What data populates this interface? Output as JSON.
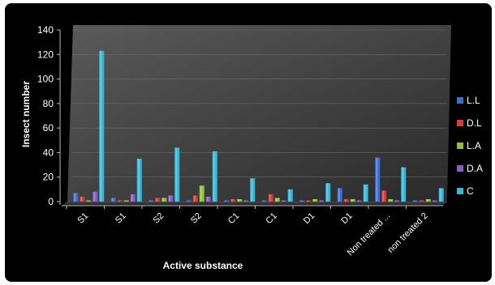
{
  "chart_data": {
    "type": "bar",
    "xlabel": "Active substance",
    "ylabel": "Insect number",
    "ylim": [
      0,
      140
    ],
    "yticks": [
      0,
      20,
      40,
      60,
      80,
      100,
      120,
      140
    ],
    "categories": [
      "S1",
      "S1",
      "S2",
      "S2",
      "C1",
      "C1",
      "D1",
      "D1",
      "Non treated ...",
      "non treated 2"
    ],
    "legend_position": "right",
    "grid": true,
    "series": [
      {
        "name": "L.L",
        "color": "#3a6fd8",
        "values": [
          7,
          3,
          1,
          1,
          1,
          1,
          1,
          11,
          36,
          1
        ]
      },
      {
        "name": "D.L",
        "color": "#d83a3a",
        "values": [
          4,
          1,
          3,
          5,
          2,
          6,
          1,
          2,
          9,
          1
        ]
      },
      {
        "name": "L.A",
        "color": "#8fc23a",
        "values": [
          1,
          1,
          3,
          13,
          2,
          3,
          2,
          2,
          2,
          2
        ]
      },
      {
        "name": "D.A",
        "color": "#8a5ac8",
        "values": [
          8,
          6,
          5,
          4,
          1,
          1,
          1,
          1,
          1,
          1
        ]
      },
      {
        "name": "C",
        "color": "#35b8d8",
        "values": [
          123,
          35,
          44,
          41,
          19,
          10,
          15,
          14,
          28,
          11
        ]
      }
    ]
  }
}
